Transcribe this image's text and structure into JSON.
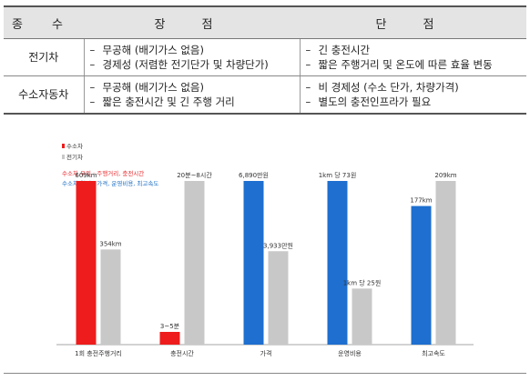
{
  "table": {
    "headers": {
      "kind": "종 수",
      "pros": "장 점",
      "cons": "단 점"
    },
    "rows": [
      {
        "kind": "전기차",
        "pros": [
          "무공해 (배기가스 없음)",
          "경제성 (저렴한 전기단가 및 차량단가)"
        ],
        "cons": [
          "긴 충전시간",
          "짧은 주행거리 및 온도에 따른 효율 변동"
        ]
      },
      {
        "kind": "수소자동차",
        "pros": [
          "무공해 (배기가스 없음)",
          "짧은 충전시간 및 긴 주행 거리"
        ],
        "cons": [
          "비 경제성 (수소 단가, 차량가격)",
          "별도의 충전인프라가 필요"
        ]
      }
    ],
    "dash": "–"
  },
  "legend": {
    "hydrogen": "수소차",
    "electric": "전기차"
  },
  "notes": {
    "hydrogen_adv": "수소차 우위 : 주행거리, 충전시간",
    "electric_adv": "수소차 열위 : 가격, 운영비용, 최고속도"
  },
  "colors": {
    "hydrogen": "#ee1c1c",
    "electric": "#c8c8c8",
    "fcv_blue": "#1e6fcf"
  },
  "chart_data": {
    "type": "bar",
    "categories": [
      "1회 충전주행거리",
      "충전시간",
      "가격",
      "운영비용",
      "최고속도"
    ],
    "series": [
      {
        "name": "수소차",
        "values": [
          609,
          4,
          6890,
          73,
          177
        ],
        "labels": [
          "609km",
          "3~5분",
          "6,890만원",
          "1km 당 73원",
          "177km"
        ],
        "colors": [
          "#ee1c1c",
          "#ee1c1c",
          "#1e6fcf",
          "#1e6fcf",
          "#1e6fcf"
        ]
      },
      {
        "name": "전기차",
        "values": [
          354,
          420,
          3933,
          25,
          209
        ],
        "labels": [
          "354km",
          "20분~8시간",
          "3,933만원",
          "1km 당 25원",
          "209km"
        ],
        "colors": [
          "#c8c8c8",
          "#c8c8c8",
          "#c8c8c8",
          "#c8c8c8",
          "#c8c8c8"
        ]
      }
    ],
    "per_category_max": [
      609,
      420,
      6890,
      73,
      209
    ],
    "axis_lines": false,
    "grid": false,
    "legend_position": "top-left"
  }
}
